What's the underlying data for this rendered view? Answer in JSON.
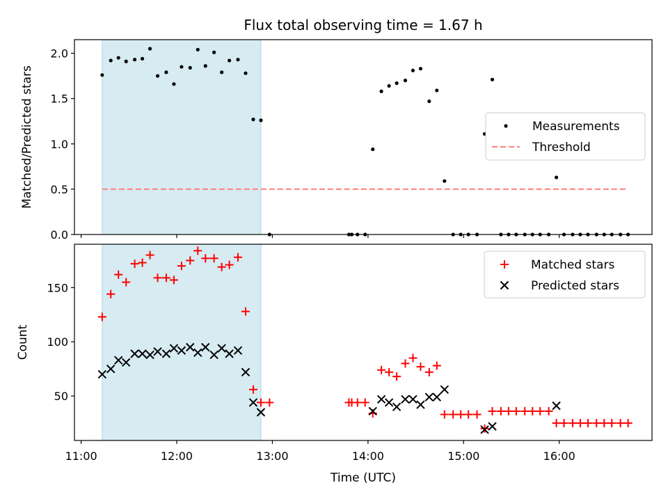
{
  "chart_data": {
    "title": "Flux total observing time = 1.67 h",
    "xlabel": "Time (UTC)",
    "x_ticks": [
      "11:00",
      "12:00",
      "13:00",
      "14:00",
      "15:00",
      "16:00"
    ],
    "x_tick_hours": [
      11,
      12,
      13,
      14,
      15,
      16
    ],
    "xlim_hours": [
      10.93,
      16.97
    ],
    "shaded_interval_hours": [
      11.22,
      12.88
    ],
    "shade_color": "#add8e6",
    "panels": [
      {
        "type": "scatter",
        "ylabel": "Matched/Predicted stars",
        "ylim": [
          0,
          2.15
        ],
        "y_ticks": [
          "0.0",
          "0.5",
          "1.0",
          "1.5",
          "2.0"
        ],
        "y_tick_values": [
          0,
          0.5,
          1.0,
          1.5,
          2.0
        ],
        "legend_position": "center-right",
        "series": [
          {
            "name": "Measurements",
            "marker": "dot",
            "color": "#000000",
            "x": [
              11.22,
              11.31,
              11.39,
              11.47,
              11.56,
              11.64,
              11.72,
              11.8,
              11.89,
              11.97,
              12.05,
              12.14,
              12.22,
              12.3,
              12.39,
              12.47,
              12.55,
              12.64,
              12.72,
              12.8,
              12.88,
              12.97,
              13.8,
              13.83,
              13.89,
              13.97,
              14.05,
              14.14,
              14.22,
              14.3,
              14.39,
              14.47,
              14.55,
              14.64,
              14.72,
              14.8,
              14.89,
              14.97,
              15.05,
              15.14,
              15.22,
              15.3,
              15.39,
              15.47,
              15.55,
              15.64,
              15.72,
              15.8,
              15.89,
              15.97,
              16.05,
              16.14,
              16.22,
              16.3,
              16.39,
              16.47,
              16.55,
              16.64,
              16.72
            ],
            "y": [
              1.76,
              1.92,
              1.95,
              1.91,
              1.93,
              1.94,
              2.05,
              1.75,
              1.79,
              1.66,
              1.85,
              1.84,
              2.04,
              1.86,
              2.01,
              1.79,
              1.92,
              1.93,
              1.78,
              1.27,
              1.26,
              0,
              0,
              0,
              0,
              0,
              0.94,
              1.58,
              1.64,
              1.67,
              1.7,
              1.81,
              1.83,
              1.47,
              1.59,
              0.59,
              0,
              0,
              0,
              0,
              1.11,
              1.71,
              0,
              0,
              0,
              0,
              0,
              0,
              0,
              0.63,
              0,
              0,
              0,
              0,
              0,
              0,
              0,
              0,
              0
            ]
          },
          {
            "name": "Threshold",
            "marker": "dashed-line",
            "color": "#ff7f7f",
            "x": [
              11.22,
              16.72
            ],
            "y": [
              0.5,
              0.5
            ]
          }
        ]
      },
      {
        "type": "scatter",
        "ylabel": "Count",
        "ylim": [
          9,
          190
        ],
        "y_ticks": [
          "50",
          "100",
          "150"
        ],
        "y_tick_values": [
          50,
          100,
          150
        ],
        "legend_position": "top-right",
        "series": [
          {
            "name": "Matched stars",
            "marker": "plus",
            "color": "#ff0000",
            "x": [
              11.22,
              11.31,
              11.39,
              11.47,
              11.56,
              11.64,
              11.72,
              11.8,
              11.89,
              11.97,
              12.05,
              12.14,
              12.22,
              12.3,
              12.39,
              12.47,
              12.55,
              12.64,
              12.72,
              12.8,
              12.88,
              12.97,
              13.8,
              13.83,
              13.89,
              13.97,
              14.05,
              14.14,
              14.22,
              14.3,
              14.39,
              14.47,
              14.55,
              14.64,
              14.72,
              14.8,
              14.89,
              14.97,
              15.05,
              15.14,
              15.22,
              15.3,
              15.39,
              15.47,
              15.55,
              15.64,
              15.72,
              15.8,
              15.89,
              15.97,
              16.05,
              16.14,
              16.22,
              16.3,
              16.39,
              16.47,
              16.55,
              16.64,
              16.72
            ],
            "y": [
              123,
              144,
              162,
              155,
              172,
              173,
              180,
              159,
              159,
              157,
              170,
              175,
              184,
              177,
              177,
              169,
              171,
              178,
              128,
              56,
              44,
              44,
              44,
              44,
              44,
              44,
              34,
              74,
              72,
              68,
              80,
              85,
              77,
              72,
              78,
              33,
              33,
              33,
              33,
              33,
              20,
              36,
              36,
              36,
              36,
              36,
              36,
              36,
              36,
              25,
              25,
              25,
              25,
              25,
              25,
              25,
              25,
              25,
              25
            ]
          },
          {
            "name": "Predicted stars",
            "marker": "x",
            "color": "#000000",
            "x": [
              11.22,
              11.31,
              11.39,
              11.47,
              11.56,
              11.64,
              11.72,
              11.8,
              11.89,
              11.97,
              12.05,
              12.14,
              12.22,
              12.3,
              12.39,
              12.47,
              12.55,
              12.64,
              12.72,
              12.8,
              12.88,
              14.05,
              14.14,
              14.22,
              14.3,
              14.39,
              14.47,
              14.55,
              14.64,
              14.72,
              14.8,
              15.22,
              15.3,
              15.97
            ],
            "y": [
              70,
              75,
              83,
              81,
              89,
              89,
              88,
              91,
              89,
              94,
              92,
              95,
              90,
              95,
              88,
              94,
              89,
              92,
              72,
              44,
              35,
              36,
              47,
              44,
              40,
              47,
              47,
              42,
              49,
              49,
              56,
              19,
              22,
              41
            ]
          }
        ]
      }
    ]
  }
}
